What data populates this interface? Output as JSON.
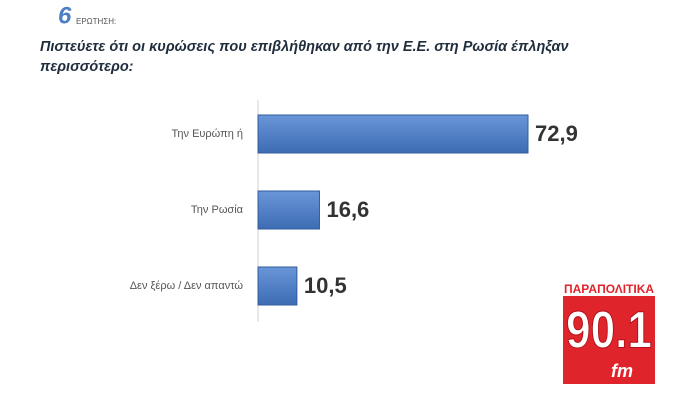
{
  "chart_data": {
    "type": "bar",
    "orientation": "horizontal",
    "question_number": "6",
    "question_label": "ΕΡΩΤΗΣΗ:",
    "title": "Πιστεύετε ότι οι κυρώσεις που επιβλήθηκαν από την Ε.Ε. στη Ρωσία έπληξαν περισσότερο:",
    "categories": [
      "Την Ευρώπη ή",
      "Την Ρωσία",
      "Δεν ξέρω / Δεν απαντώ"
    ],
    "values": [
      72.9,
      16.6,
      10.5
    ],
    "value_labels": [
      "72,9",
      "16,6",
      "10,5"
    ],
    "color": "#4a7cc7"
  },
  "logo": {
    "brand": "ΠΑΡΑΠΟΛΙΤΙΚΑ",
    "frequency": "90.1",
    "unit": "fm"
  }
}
